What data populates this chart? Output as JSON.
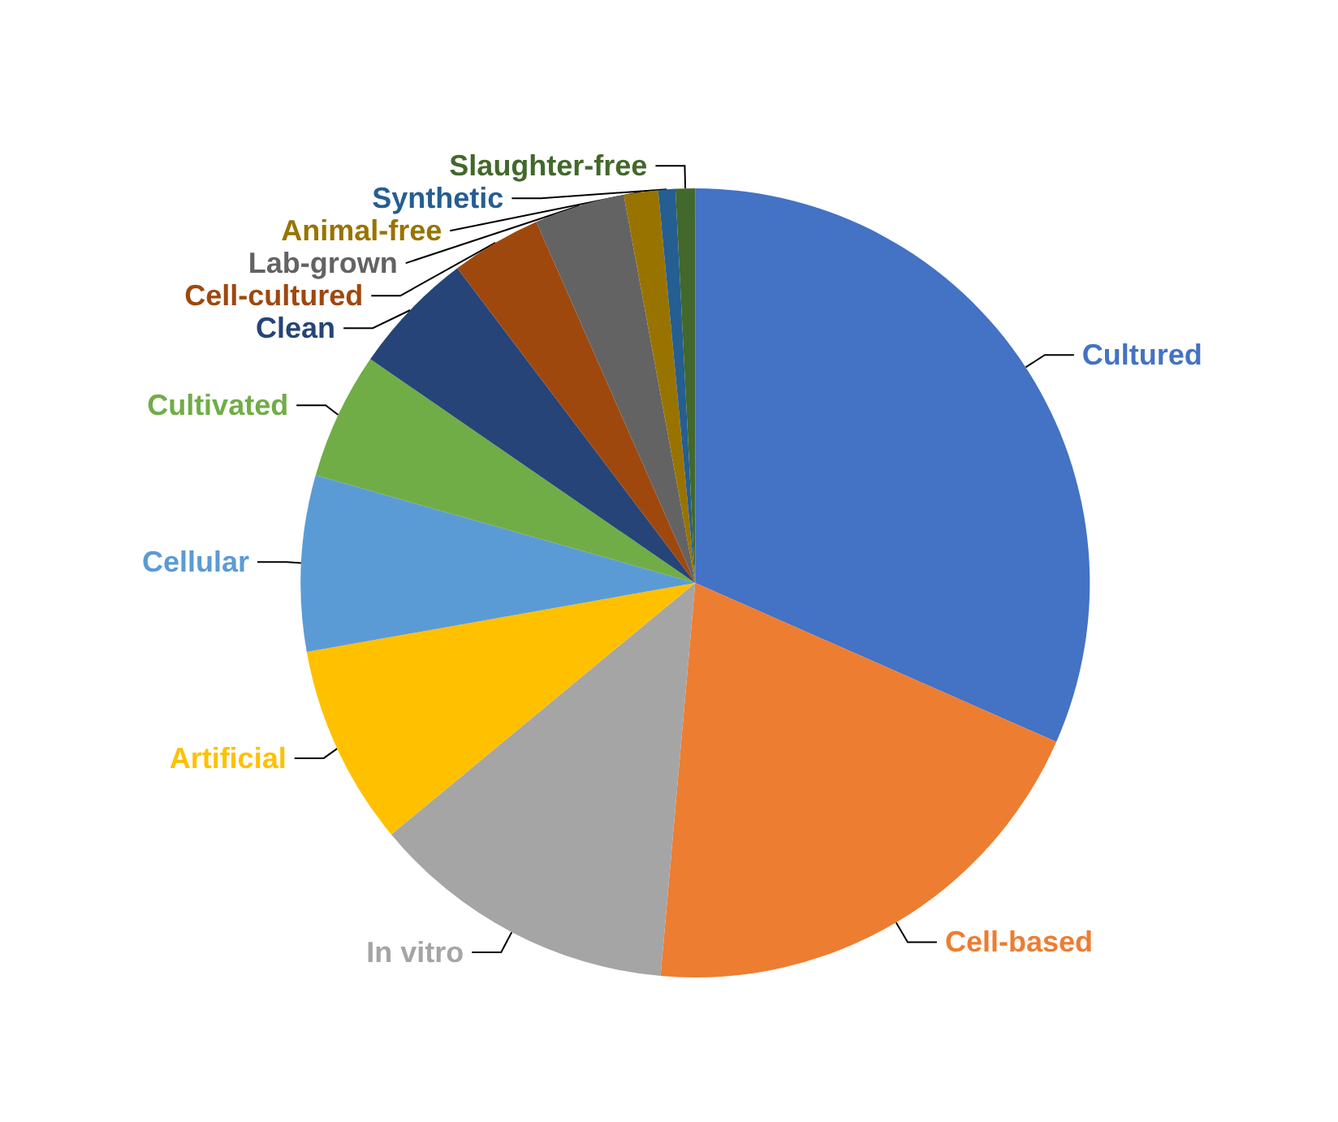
{
  "chart_data": {
    "type": "pie",
    "categories": [
      "Cultured",
      "Cell-based",
      "In vitro",
      "Artificial",
      "Cellular",
      "Cultivated",
      "Clean",
      "Cell-cultured",
      "Lab-grown",
      "Animal-free",
      "Synthetic",
      "Slaughter-free"
    ],
    "values": [
      31.6,
      19.8,
      12.6,
      8.2,
      7.2,
      5.2,
      5.1,
      3.7,
      3.7,
      1.4,
      0.7,
      0.8
    ],
    "colors": [
      "#4472c4",
      "#ed7d31",
      "#a5a5a5",
      "#ffc000",
      "#5b9bd5",
      "#70ad47",
      "#264478",
      "#9e480e",
      "#636363",
      "#997300",
      "#255e91",
      "#43682b"
    ],
    "legend": false
  }
}
